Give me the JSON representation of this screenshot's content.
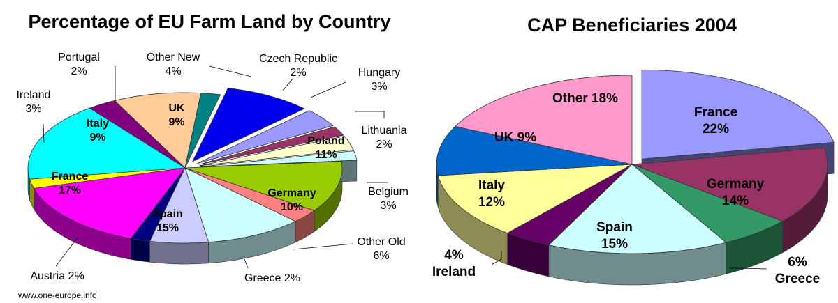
{
  "source": "www.one-europe.info",
  "chart_data": [
    {
      "type": "pie",
      "title": "Percentage of EU Farm Land by Country",
      "slices": [
        {
          "name": "UK",
          "value": 9,
          "color": "#0000ee",
          "exploded": true,
          "label_inside": true
        },
        {
          "name": "Other New",
          "value": 4,
          "color": "#9999ff",
          "exploded": true,
          "label_inside": false
        },
        {
          "name": "Czech Republic",
          "value": 2,
          "color": "#993366",
          "exploded": true,
          "label_inside": false
        },
        {
          "name": "Hungary",
          "value": 3,
          "color": "#ffffcc",
          "exploded": true,
          "label_inside": false
        },
        {
          "name": "Lithuania",
          "value": 2,
          "color": "#ccffff",
          "exploded": true,
          "label_inside": false
        },
        {
          "name": "Poland",
          "value": 11,
          "color": "#99cc00",
          "exploded": false,
          "label_inside": true
        },
        {
          "name": "Belgium",
          "value": 3,
          "color": "#ff8080",
          "exploded": false,
          "label_inside": false
        },
        {
          "name": "Germany",
          "value": 10,
          "color": "#ccffff",
          "exploded": false,
          "label_inside": true
        },
        {
          "name": "Other Old",
          "value": 6,
          "color": "#ccccff",
          "exploded": false,
          "label_inside": false
        },
        {
          "name": "Greece",
          "value": 2,
          "color": "#000080",
          "exploded": false,
          "label_inside": false
        },
        {
          "name": "Spain",
          "value": 15,
          "color": "#ff00ff",
          "exploded": false,
          "label_inside": true
        },
        {
          "name": "Austria",
          "value": 2,
          "color": "#ffff00",
          "exploded": false,
          "label_inside": false
        },
        {
          "name": "France",
          "value": 17,
          "color": "#00ffff",
          "exploded": false,
          "label_inside": true
        },
        {
          "name": "Ireland",
          "value": 3,
          "color": "#800080",
          "exploded": false,
          "label_inside": false
        },
        {
          "name": "Italy",
          "value": 9,
          "color": "#ffcc99",
          "exploded": false,
          "label_inside": true
        },
        {
          "name": "Portugal",
          "value": 2,
          "color": "#008080",
          "exploded": false,
          "label_inside": false
        }
      ],
      "labels": {
        "UK": [
          "UK",
          "9%"
        ],
        "Other New": [
          "Other New",
          "4%"
        ],
        "Czech Republic": [
          "Czech Republic",
          "2%"
        ],
        "Hungary": [
          "Hungary",
          "3%"
        ],
        "Lithuania": [
          "Lithuania",
          "2%"
        ],
        "Poland": [
          "Poland",
          "11%"
        ],
        "Belgium": [
          "Belgium",
          "3%"
        ],
        "Germany": [
          "Germany",
          "10%"
        ],
        "Other Old": [
          "Other Old",
          "6%"
        ],
        "Greece": [
          "Greece 2%"
        ],
        "Spain": [
          "Spain",
          "15%"
        ],
        "Austria": [
          "Austria 2%"
        ],
        "France": [
          "France",
          "17%"
        ],
        "Ireland": [
          "Ireland",
          "3%"
        ],
        "Italy": [
          "Italy",
          "9%"
        ],
        "Portugal": [
          "Portugal",
          "2%"
        ]
      }
    },
    {
      "type": "pie",
      "title": "CAP Beneficiaries 2004",
      "slices": [
        {
          "name": "France",
          "value": 22,
          "color": "#9999ff",
          "exploded": true,
          "label_inside": true
        },
        {
          "name": "Germany",
          "value": 14,
          "color": "#993366",
          "exploded": false,
          "label_inside": true
        },
        {
          "name": "Greece",
          "value": 6,
          "color": "#339966",
          "exploded": false,
          "label_inside": false
        },
        {
          "name": "Spain",
          "value": 15,
          "color": "#ccffff",
          "exploded": false,
          "label_inside": true
        },
        {
          "name": "Ireland",
          "value": 4,
          "color": "#660066",
          "exploded": false,
          "label_inside": false
        },
        {
          "name": "Italy",
          "value": 12,
          "color": "#ffff99",
          "exploded": false,
          "label_inside": true
        },
        {
          "name": "UK",
          "value": 9,
          "color": "#0066cc",
          "exploded": false,
          "label_inside": true
        },
        {
          "name": "Other",
          "value": 18,
          "color": "#ff99cc",
          "exploded": false,
          "label_inside": true
        }
      ],
      "labels": {
        "France": [
          "France",
          "22%"
        ],
        "Germany": [
          "Germany",
          "14%"
        ],
        "Greece": [
          "6%",
          "Greece"
        ],
        "Spain": [
          "Spain",
          "15%"
        ],
        "Ireland": [
          "4%",
          "Ireland"
        ],
        "Italy": [
          "Italy",
          "12%"
        ],
        "UK": [
          "UK  9%"
        ],
        "Other": [
          "Other 18%"
        ]
      }
    }
  ]
}
